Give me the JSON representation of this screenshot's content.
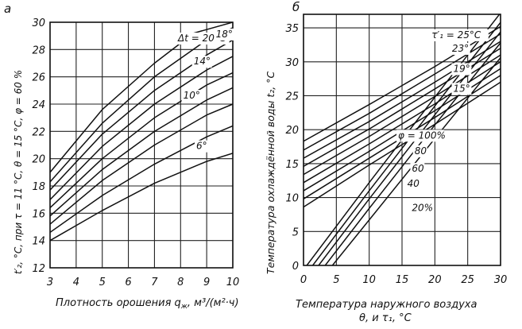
{
  "chart_data": [
    {
      "type": "line",
      "panel_label": "а",
      "xlabel": "Плотность орошения q",
      "xlabel_subscript": "ж",
      "xlabel_units": ", м³/(м²·ч)",
      "ylabel": "t′₂, °C, при τ = 11 °С, θ = 15 °С, φ = 60 %",
      "xlim": [
        3,
        10
      ],
      "ylim": [
        12,
        30
      ],
      "x_ticks": [
        3,
        4,
        5,
        6,
        7,
        8,
        9,
        10
      ],
      "y_ticks": [
        12,
        14,
        16,
        18,
        20,
        22,
        24,
        26,
        28,
        30
      ],
      "x_tick_labels": [
        "3",
        "4",
        "5",
        "6",
        "7",
        "8",
        "9",
        "10"
      ],
      "y_tick_labels": [
        "12",
        "14",
        "16",
        "18",
        "20",
        "22",
        "24",
        "26",
        "28",
        "30"
      ],
      "grid": true,
      "series": [
        {
          "name": "Δt = 20°C",
          "x": [
            3,
            5,
            7,
            8.5,
            10
          ],
          "y": [
            19.0,
            23.6,
            27.0,
            29.2,
            30.0
          ]
        },
        {
          "name": "",
          "x": [
            3,
            5,
            7,
            9,
            10
          ],
          "y": [
            18.3,
            22.6,
            26.0,
            28.7,
            29.6
          ]
        },
        {
          "name": "18°",
          "x": [
            3,
            5,
            7,
            9,
            10
          ],
          "y": [
            17.7,
            21.8,
            25.0,
            27.6,
            28.7
          ]
        },
        {
          "name": "",
          "x": [
            3,
            5,
            7,
            9,
            10
          ],
          "y": [
            17.0,
            20.9,
            24.0,
            26.5,
            27.5
          ]
        },
        {
          "name": "14°",
          "x": [
            3,
            5,
            7,
            9,
            10
          ],
          "y": [
            16.4,
            20.0,
            23.0,
            25.4,
            26.3
          ]
        },
        {
          "name": "",
          "x": [
            3,
            5,
            7,
            9,
            10
          ],
          "y": [
            15.8,
            19.2,
            22.0,
            24.3,
            25.2
          ]
        },
        {
          "name": "10°",
          "x": [
            3,
            5,
            7,
            9,
            10
          ],
          "y": [
            15.2,
            18.4,
            21.0,
            23.2,
            24.0
          ]
        },
        {
          "name": "",
          "x": [
            3,
            5,
            7,
            9,
            10
          ],
          "y": [
            14.6,
            17.3,
            19.6,
            21.6,
            22.4
          ]
        },
        {
          "name": "6°",
          "x": [
            3,
            5,
            7,
            9,
            10
          ],
          "y": [
            14.0,
            16.2,
            18.2,
            19.8,
            20.4
          ]
        }
      ],
      "annotations": [
        {
          "text": "Δt = 20°C",
          "x": 7.9,
          "y": 28.6
        },
        {
          "text": "18°",
          "x": 9.35,
          "y": 28.9
        },
        {
          "text": "14°",
          "x": 8.5,
          "y": 26.9
        },
        {
          "text": "10°",
          "x": 8.1,
          "y": 24.4
        },
        {
          "text": "6°",
          "x": 8.6,
          "y": 20.7
        }
      ]
    },
    {
      "type": "line",
      "panel_label": "б",
      "xlabel": "Температура наружного воздуха",
      "xlabel_line2": "θ, и τ₁, °С",
      "ylabel": "Температура охлаждённой воды t₂, °С",
      "xlim": [
        0,
        30
      ],
      "ylim": [
        0,
        37
      ],
      "x_ticks": [
        0,
        5,
        10,
        15,
        20,
        25,
        30
      ],
      "y_ticks": [
        0,
        5,
        10,
        15,
        20,
        25,
        30,
        35
      ],
      "x_tick_labels": [
        "0",
        "5",
        "10",
        "15",
        "20",
        "25",
        "30"
      ],
      "y_tick_labels": [
        "0",
        "5",
        "10",
        "15",
        "20",
        "25",
        "30",
        "35"
      ],
      "grid": true,
      "series": [
        {
          "name": "τ′₁ = 25°C",
          "x": [
            0,
            10,
            20,
            30
          ],
          "y": [
            18.3,
            23.7,
            29.3,
            35.2
          ]
        },
        {
          "name": "",
          "x": [
            0,
            10,
            20,
            30
          ],
          "y": [
            17.0,
            22.4,
            28.2,
            34.1
          ]
        },
        {
          "name": "23°",
          "x": [
            0,
            10,
            20,
            30
          ],
          "y": [
            15.8,
            21.2,
            27.0,
            33.0
          ]
        },
        {
          "name": "",
          "x": [
            0,
            10,
            20,
            30
          ],
          "y": [
            14.6,
            20.1,
            26.0,
            32.0
          ]
        },
        {
          "name": "19°",
          "x": [
            0,
            10,
            20,
            30
          ],
          "y": [
            13.4,
            19.0,
            24.9,
            31.0
          ]
        },
        {
          "name": "",
          "x": [
            0,
            10,
            20,
            30
          ],
          "y": [
            12.2,
            17.9,
            23.8,
            30.0
          ]
        },
        {
          "name": "15°",
          "x": [
            0,
            10,
            20,
            30
          ],
          "y": [
            11.0,
            16.8,
            22.8,
            29.0
          ]
        },
        {
          "name": "",
          "x": [
            0,
            10,
            20,
            30
          ],
          "y": [
            9.8,
            15.8,
            21.8,
            28.0
          ]
        },
        {
          "name": "",
          "x": [
            0,
            10,
            20,
            30
          ],
          "y": [
            8.6,
            14.8,
            20.8,
            27.0
          ]
        },
        {
          "name": "φ = 100%",
          "x": [
            0.5,
            10,
            20,
            30
          ],
          "y": [
            0,
            12.2,
            24.8,
            37.2
          ]
        },
        {
          "name": "80",
          "x": [
            1.4,
            10,
            20,
            30
          ],
          "y": [
            0,
            11.0,
            23.5,
            35.8
          ]
        },
        {
          "name": "60",
          "x": [
            2.3,
            10,
            20,
            30
          ],
          "y": [
            0,
            9.8,
            22.2,
            34.4
          ]
        },
        {
          "name": "40",
          "x": [
            3.3,
            10,
            20,
            30
          ],
          "y": [
            0,
            8.4,
            20.7,
            32.8
          ]
        },
        {
          "name": "20%",
          "x": [
            4.4,
            10,
            20,
            30
          ],
          "y": [
            0,
            6.7,
            18.7,
            30.6
          ]
        }
      ],
      "annotations": [
        {
          "text": "τ′₁ = 25°C",
          "x": 19.5,
          "y": 33.5
        },
        {
          "text": "23°",
          "x": 22.6,
          "y": 31.5
        },
        {
          "text": "19°",
          "x": 22.8,
          "y": 28.5
        },
        {
          "text": "15°",
          "x": 22.8,
          "y": 25.6
        },
        {
          "text": "φ = 100%",
          "x": 14.4,
          "y": 18.7
        },
        {
          "text": "80",
          "x": 16.9,
          "y": 16.4
        },
        {
          "text": "60",
          "x": 16.5,
          "y": 13.8
        },
        {
          "text": "40",
          "x": 15.8,
          "y": 11.6
        },
        {
          "text": "20%",
          "x": 16.5,
          "y": 8.0
        }
      ]
    }
  ]
}
